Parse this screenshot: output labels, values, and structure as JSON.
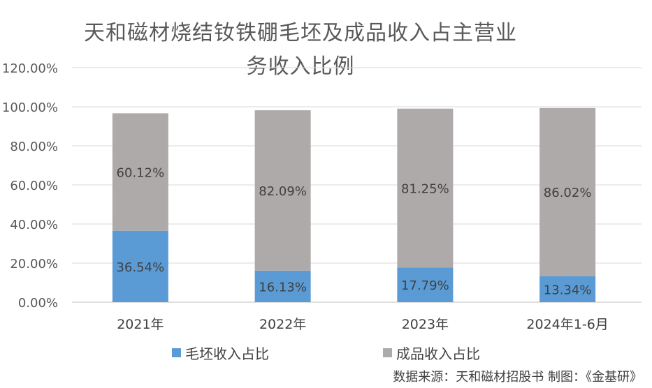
{
  "chart_data": {
    "type": "bar",
    "stacked": true,
    "title_lines": [
      "天和磁材烧结钕铁硼毛坯及成品收入占主营业",
      "务收入比例"
    ],
    "categories": [
      "2021年",
      "2022年",
      "2023年",
      "2024年1-6月"
    ],
    "series": [
      {
        "name": "毛坯收入占比",
        "values": [
          36.54,
          16.13,
          17.79,
          13.34
        ],
        "labels": [
          "36.54%",
          "16.13%",
          "17.79%",
          "13.34%"
        ],
        "color": "#5b9bd5"
      },
      {
        "name": "成品收入占比",
        "values": [
          60.12,
          82.09,
          81.25,
          86.02
        ],
        "labels": [
          "60.12%",
          "82.09%",
          "81.25%",
          "86.02%"
        ],
        "color": "#aeaaaa"
      }
    ],
    "yticks": [
      "0.00%",
      "20.00%",
      "40.00%",
      "60.00%",
      "80.00%",
      "100.00%",
      "120.00%"
    ],
    "ylim": [
      0,
      120
    ],
    "grid": true,
    "legend_position": "bottom"
  },
  "source_note": "数据来源：天和磁材招股书    制图：《金基研》"
}
